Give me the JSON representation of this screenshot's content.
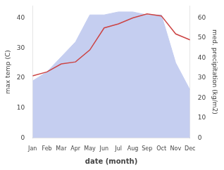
{
  "chart_data": {
    "type": "line",
    "xlabel": "date (month)",
    "ylabel": "max temp (C)",
    "y2label": "med. precipitation (kg/m2)",
    "categories": [
      "Jan",
      "Feb",
      "Mar",
      "Apr",
      "May",
      "Jun",
      "Jul",
      "Aug",
      "Sep",
      "Oct",
      "Nov",
      "Dec"
    ],
    "series": [
      {
        "type": "area",
        "color": "#c5cef0",
        "values": [
          19,
          22,
          27,
          32,
          41,
          41,
          42,
          42,
          41,
          41,
          25,
          16
        ]
      },
      {
        "type": "line",
        "color": "#cc4444",
        "axis": "y2",
        "values": [
          31,
          33,
          37,
          38,
          44,
          55,
          57,
          60,
          62,
          61,
          52,
          49
        ]
      }
    ],
    "ylim": [
      0,
      44
    ],
    "yticks": [
      0,
      10,
      20,
      30,
      40
    ],
    "y2lim": [
      0,
      66
    ],
    "y2ticks": [
      0,
      10,
      20,
      30,
      40,
      50,
      60
    ],
    "grid": false
  }
}
